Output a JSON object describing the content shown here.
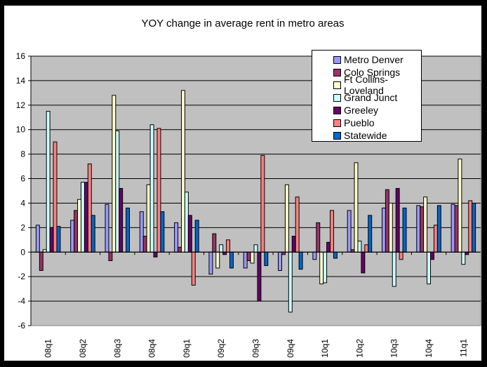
{
  "chart_data": {
    "type": "bar",
    "title": "YOY change in average rent in metro areas",
    "xlabel": "",
    "ylabel": "",
    "ylim": [
      -6,
      16
    ],
    "yticks": [
      16,
      14,
      12,
      10,
      8,
      6,
      4,
      2,
      0,
      -2,
      -4,
      -6
    ],
    "grid": true,
    "legend_position": "top-right",
    "categories": [
      "08q1",
      "08q2",
      "08q3",
      "08q4",
      "09q1",
      "09q2",
      "09q3",
      "09q4",
      "10q1",
      "10q2",
      "10q3",
      "10q4",
      "11q1"
    ],
    "series": [
      {
        "name": "Metro Denver",
        "color": "#9999ff",
        "values": [
          2.2,
          2.6,
          3.9,
          3.3,
          2.4,
          -1.8,
          -1.3,
          -1.5,
          -0.6,
          3.4,
          3.6,
          3.8,
          3.9
        ]
      },
      {
        "name": "Colo Springs",
        "color": "#993366",
        "values": [
          -1.5,
          3.4,
          -0.7,
          1.3,
          0.4,
          1.5,
          -0.7,
          -0.2,
          2.4,
          0.2,
          5.1,
          3.7,
          3.8
        ]
      },
      {
        "name": "Ft Collins-Loveland",
        "color": "#ffffcc",
        "values": [
          0.2,
          4.3,
          12.8,
          5.5,
          13.2,
          -1.3,
          -0.9,
          5.5,
          -2.6,
          7.3,
          4.0,
          4.5,
          7.6
        ]
      },
      {
        "name": "Grand Junct",
        "color": "#ccffff",
        "values": [
          11.5,
          5.7,
          9.9,
          10.4,
          4.9,
          0.6,
          0.6,
          -4.9,
          -2.5,
          0.9,
          -2.8,
          -2.6,
          -1.0
        ]
      },
      {
        "name": "Greeley",
        "color": "#660066",
        "values": [
          2.0,
          5.7,
          5.2,
          -0.4,
          3.0,
          -0.2,
          -4.0,
          1.3,
          0.8,
          -1.7,
          5.2,
          -0.6,
          -0.2
        ]
      },
      {
        "name": "Pueblo",
        "color": "#ff8080",
        "values": [
          9.0,
          7.2,
          0,
          10.1,
          -2.7,
          1.0,
          7.9,
          4.5,
          3.4,
          0.6,
          -0.6,
          2.2,
          4.2
        ]
      },
      {
        "name": "Statewide",
        "color": "#0066cc",
        "values": [
          2.1,
          3.0,
          3.6,
          3.3,
          2.6,
          -1.3,
          -1.1,
          -1.4,
          -0.5,
          3.0,
          3.6,
          3.8,
          4.0
        ]
      }
    ]
  }
}
